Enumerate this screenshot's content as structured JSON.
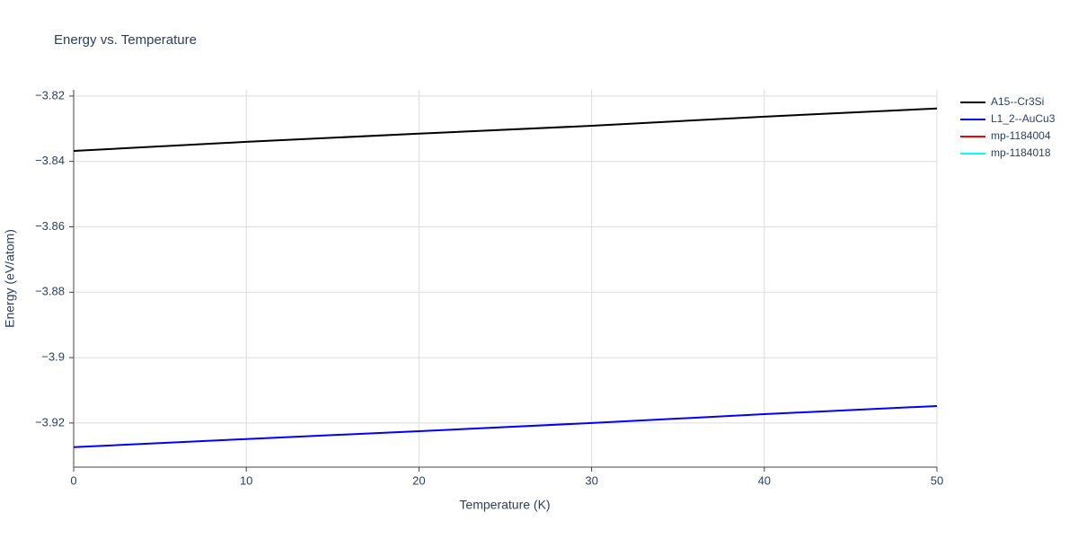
{
  "chart_data": {
    "type": "line",
    "title": "Energy vs. Temperature",
    "x_label": "Temperature (K)",
    "y_label": "Energy (eV/atom)",
    "x": [
      0,
      10,
      20,
      30,
      40,
      50
    ],
    "series": [
      {
        "name": "A15--Cr3Si",
        "color": "#000000",
        "values": [
          -3.8368,
          -3.834,
          -3.8315,
          -3.8291,
          -3.8263,
          -3.8238
        ]
      },
      {
        "name": "L1_2--AuCu3",
        "color": "#0000ff",
        "values": [
          -3.9274,
          -3.9249,
          -3.9225,
          -3.92,
          -3.9173,
          -3.9148
        ]
      },
      {
        "name": "mp-1184004",
        "color": "#ff0000",
        "values": [
          null,
          null,
          null,
          null,
          null,
          null
        ]
      },
      {
        "name": "mp-1184018",
        "color": "#00ffff",
        "values": [
          null,
          null,
          null,
          null,
          null,
          null
        ]
      }
    ],
    "xlim": [
      0,
      50
    ],
    "xticks": [
      0,
      10,
      20,
      30,
      40,
      50
    ],
    "ylim": [
      -3.9335,
      -3.8181
    ],
    "yticks": [
      {
        "value": -3.92,
        "label": "−3.92"
      },
      {
        "value": -3.9,
        "label": "−3.9"
      },
      {
        "value": -3.88,
        "label": "−3.88"
      },
      {
        "value": -3.86,
        "label": "−3.86"
      },
      {
        "value": -3.84,
        "label": "−3.84"
      },
      {
        "value": -3.82,
        "label": "−3.82"
      }
    ],
    "grid": true
  }
}
